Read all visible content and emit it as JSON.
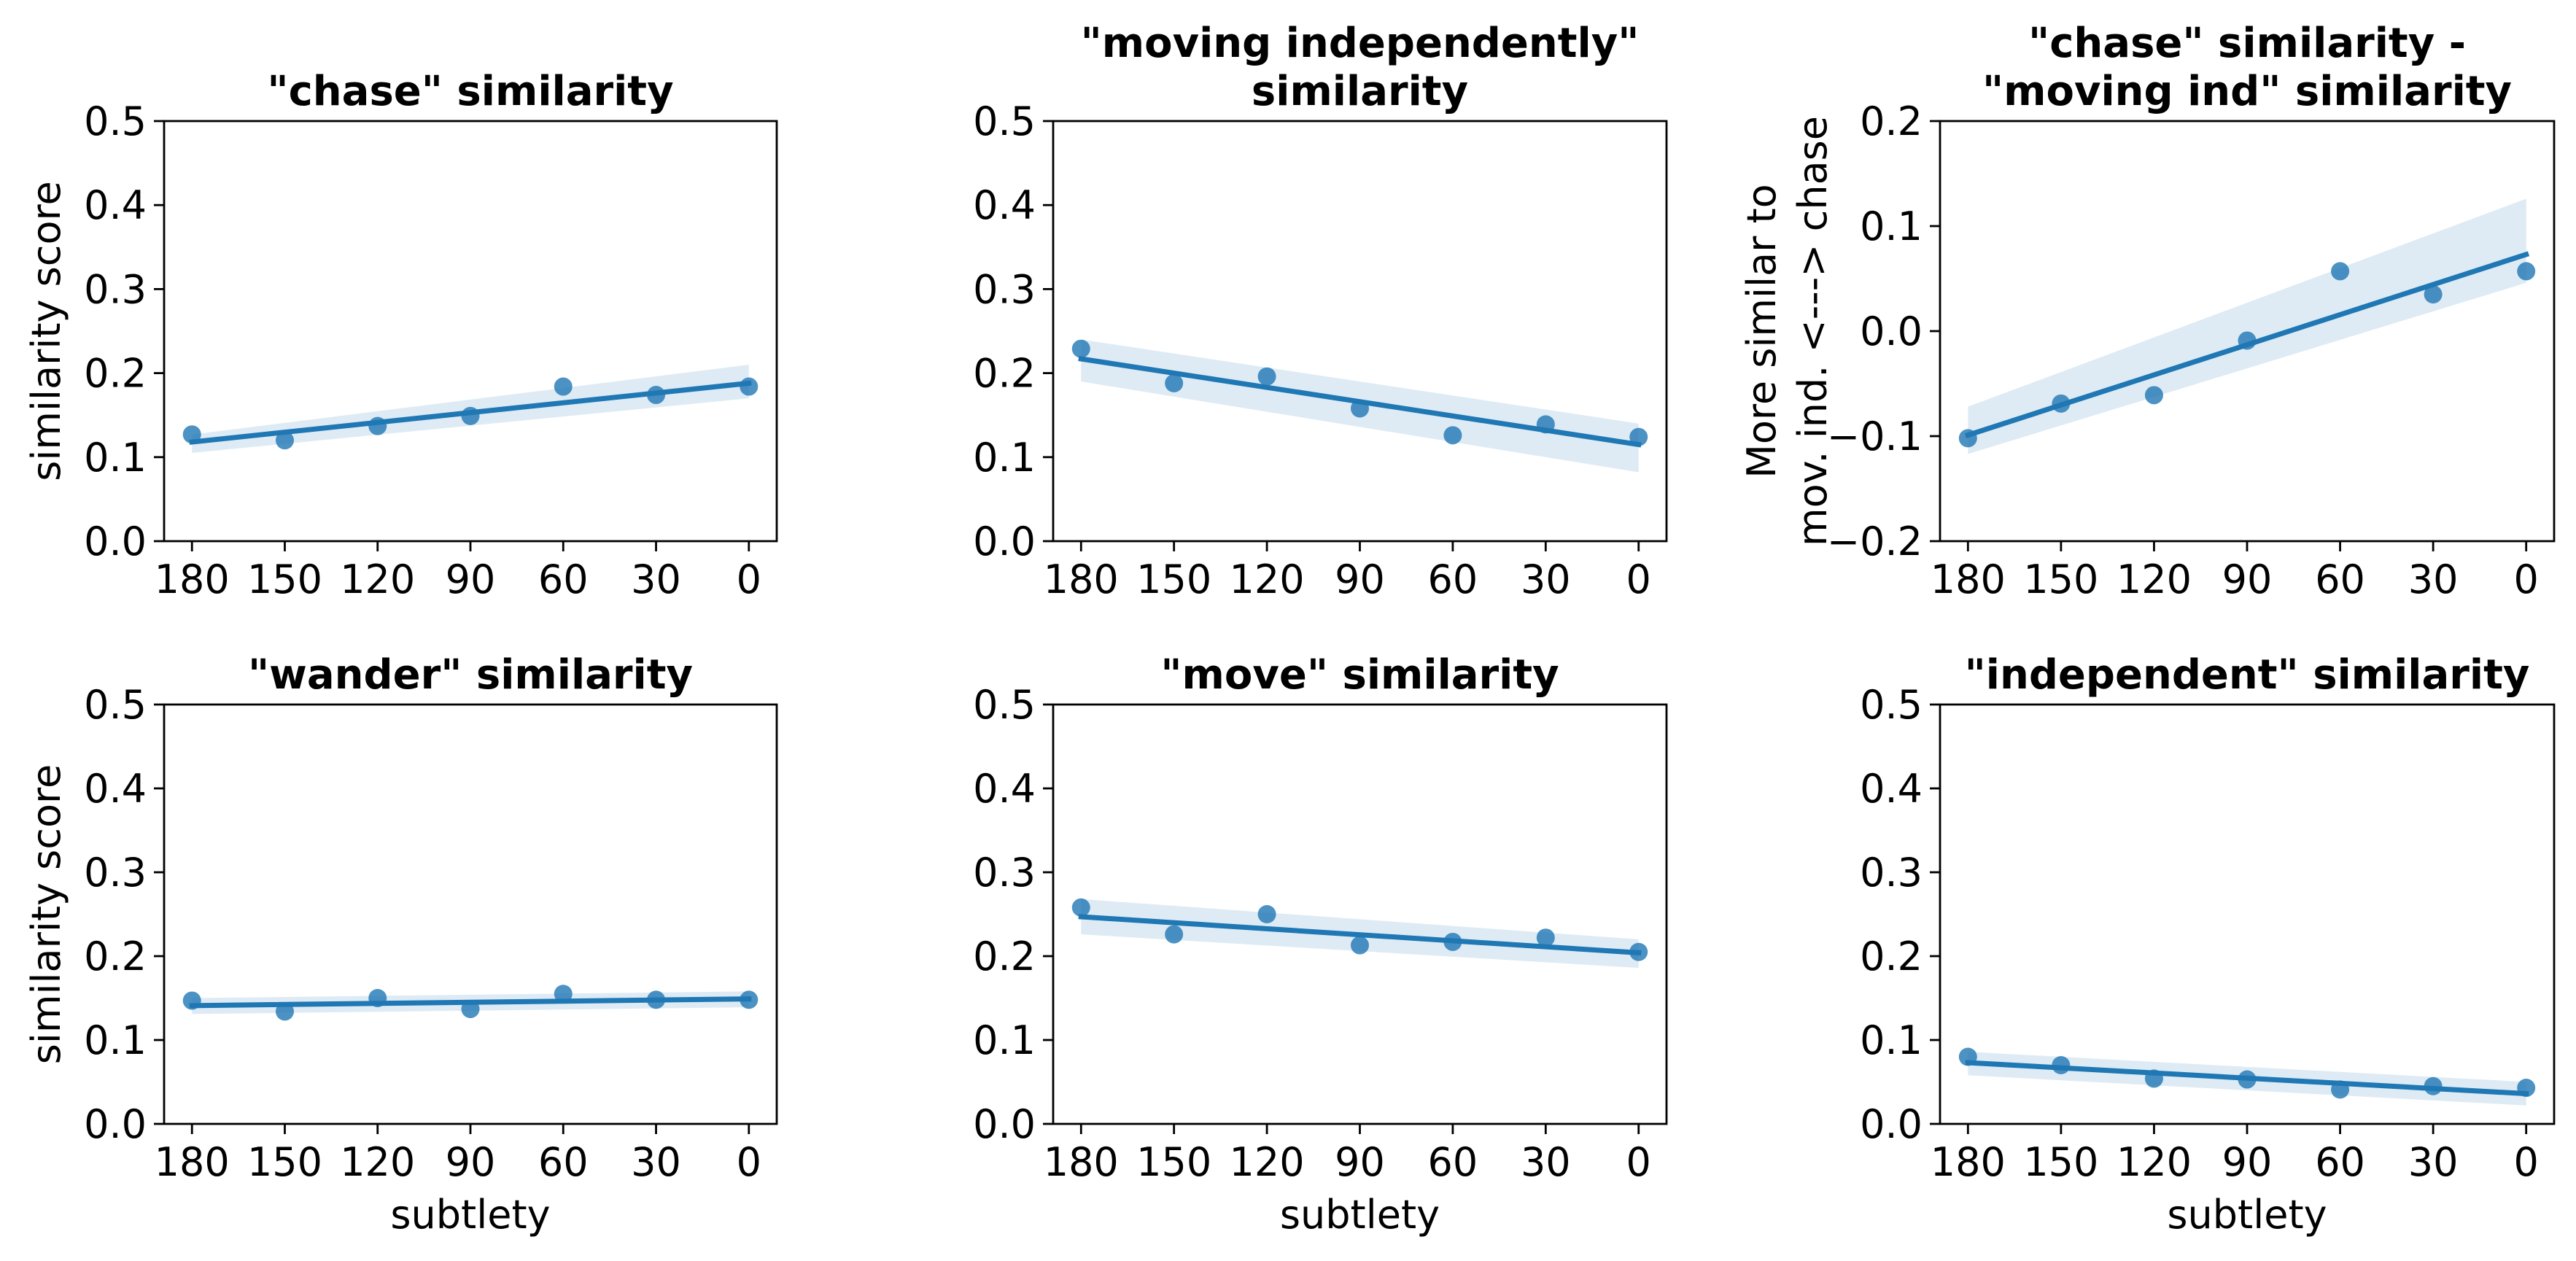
{
  "chart_data": [
    {
      "type": "scatter",
      "title_lines": [
        "\"chase\" similarity"
      ],
      "xlabel": "",
      "ylabel_lines": [
        "similarity score"
      ],
      "ylim": [
        0.0,
        0.5
      ],
      "yticks": [
        "0.0",
        "0.1",
        "0.2",
        "0.3",
        "0.4",
        "0.5"
      ],
      "xticks": [
        "180",
        "150",
        "120",
        "90",
        "60",
        "30",
        "0"
      ],
      "x": [
        180,
        150,
        120,
        90,
        60,
        30,
        0
      ],
      "y": [
        0.127,
        0.12,
        0.137,
        0.149,
        0.184,
        0.174,
        0.184
      ],
      "fit": [
        0.118,
        0.188
      ],
      "ci_upper": [
        0.127,
        0.21
      ],
      "ci_lower": [
        0.105,
        0.17
      ],
      "color": "#1f77b4",
      "grid": false
    },
    {
      "type": "scatter",
      "title_lines": [
        "\"moving independently\"",
        "similarity"
      ],
      "xlabel": "",
      "ylabel_lines": [],
      "ylim": [
        0.0,
        0.5
      ],
      "yticks": [
        "0.0",
        "0.1",
        "0.2",
        "0.3",
        "0.4",
        "0.5"
      ],
      "xticks": [
        "180",
        "150",
        "120",
        "90",
        "60",
        "30",
        "0"
      ],
      "x": [
        180,
        150,
        120,
        90,
        60,
        30,
        0
      ],
      "y": [
        0.229,
        0.188,
        0.196,
        0.158,
        0.126,
        0.139,
        0.124
      ],
      "fit": [
        0.217,
        0.115
      ],
      "ci_upper": [
        0.24,
        0.14
      ],
      "ci_lower": [
        0.19,
        0.082
      ],
      "color": "#1f77b4",
      "grid": false
    },
    {
      "type": "scatter",
      "title_lines": [
        "\"chase\" similarity -",
        "\"moving ind\" similarity"
      ],
      "xlabel": "",
      "ylabel_lines": [
        "More similar to",
        "mov. ind. <---> chase"
      ],
      "ylim": [
        -0.2,
        0.2
      ],
      "yticks": [
        "−0.2",
        "−0.1",
        "0.0",
        "0.1",
        "0.2"
      ],
      "xticks": [
        "180",
        "150",
        "120",
        "90",
        "60",
        "30",
        "0"
      ],
      "x": [
        180,
        150,
        120,
        90,
        60,
        30,
        0
      ],
      "y": [
        -0.102,
        -0.069,
        -0.061,
        -0.009,
        0.057,
        0.035,
        0.057
      ],
      "fit": [
        -0.099,
        0.073
      ],
      "ci_upper": [
        -0.072,
        0.126
      ],
      "ci_lower": [
        -0.117,
        0.046
      ],
      "color": "#1f77b4",
      "grid": false
    },
    {
      "type": "scatter",
      "title_lines": [
        "\"wander\" similarity"
      ],
      "xlabel": "subtlety",
      "ylabel_lines": [
        "similarity score"
      ],
      "ylim": [
        0.0,
        0.5
      ],
      "yticks": [
        "0.0",
        "0.1",
        "0.2",
        "0.3",
        "0.4",
        "0.5"
      ],
      "xticks": [
        "180",
        "150",
        "120",
        "90",
        "60",
        "30",
        "0"
      ],
      "x": [
        180,
        150,
        120,
        90,
        60,
        30,
        0
      ],
      "y": [
        0.147,
        0.134,
        0.15,
        0.137,
        0.155,
        0.148,
        0.148
      ],
      "fit": [
        0.141,
        0.149
      ],
      "ci_upper": [
        0.15,
        0.158
      ],
      "ci_lower": [
        0.131,
        0.139
      ],
      "color": "#1f77b4",
      "grid": false
    },
    {
      "type": "scatter",
      "title_lines": [
        "\"move\" similarity"
      ],
      "xlabel": "subtlety",
      "ylabel_lines": [],
      "ylim": [
        0.0,
        0.5
      ],
      "yticks": [
        "0.0",
        "0.1",
        "0.2",
        "0.3",
        "0.4",
        "0.5"
      ],
      "xticks": [
        "180",
        "150",
        "120",
        "90",
        "60",
        "30",
        "0"
      ],
      "x": [
        180,
        150,
        120,
        90,
        60,
        30,
        0
      ],
      "y": [
        0.258,
        0.226,
        0.25,
        0.213,
        0.217,
        0.222,
        0.205
      ],
      "fit": [
        0.247,
        0.204
      ],
      "ci_upper": [
        0.268,
        0.22
      ],
      "ci_lower": [
        0.226,
        0.186
      ],
      "color": "#1f77b4",
      "grid": false
    },
    {
      "type": "scatter",
      "title_lines": [
        "\"independent\" similarity"
      ],
      "xlabel": "subtlety",
      "ylabel_lines": [],
      "ylim": [
        0.0,
        0.5
      ],
      "yticks": [
        "0.0",
        "0.1",
        "0.2",
        "0.3",
        "0.4",
        "0.5"
      ],
      "xticks": [
        "180",
        "150",
        "120",
        "90",
        "60",
        "30",
        "0"
      ],
      "x": [
        180,
        150,
        120,
        90,
        60,
        30,
        0
      ],
      "y": [
        0.08,
        0.07,
        0.054,
        0.053,
        0.041,
        0.045,
        0.043
      ],
      "fit": [
        0.073,
        0.036
      ],
      "ci_upper": [
        0.086,
        0.05
      ],
      "ci_lower": [
        0.058,
        0.022
      ],
      "color": "#1f77b4",
      "grid": false
    }
  ]
}
